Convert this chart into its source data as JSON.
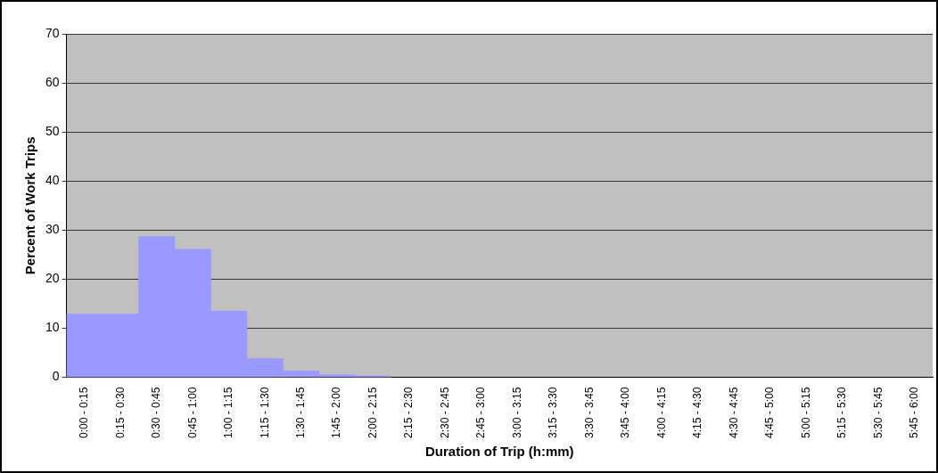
{
  "chart_data": {
    "type": "bar",
    "xlabel": "Duration of Trip (h:mm)",
    "ylabel": "Percent of Work Trips",
    "categories": [
      "0:00 - 0:15",
      "0:15 - 0:30",
      "0:30 - 0:45",
      "0:45 - 1:00",
      "1:00 - 1:15",
      "1:15 - 1:30",
      "1:30 - 1:45",
      "1:45 - 2:00",
      "2:00 - 2:15",
      "2:15 - 2:30",
      "2:30 - 2:45",
      "2:45 - 3:00",
      "3:00 - 3:15",
      "3:15 - 3:30",
      "3:30 - 3:45",
      "3:45 - 4:00",
      "4:00 - 4:15",
      "4:15 - 4:30",
      "4:30 - 4:45",
      "4:45 - 5:00",
      "5:00 - 5:15",
      "5:15 - 5:30",
      "5:30 - 5:45",
      "5:45 - 6:00"
    ],
    "values": [
      12.9,
      12.9,
      28.7,
      26.1,
      13.5,
      3.8,
      1.3,
      0.5,
      0.3,
      null,
      null,
      null,
      null,
      null,
      null,
      null,
      null,
      null,
      null,
      null,
      null,
      null,
      null,
      null
    ],
    "color": "#9999ff",
    "ylim": [
      0,
      70
    ],
    "yticks": [
      0,
      10,
      20,
      30,
      40,
      50,
      60,
      70
    ],
    "grid": "y"
  }
}
